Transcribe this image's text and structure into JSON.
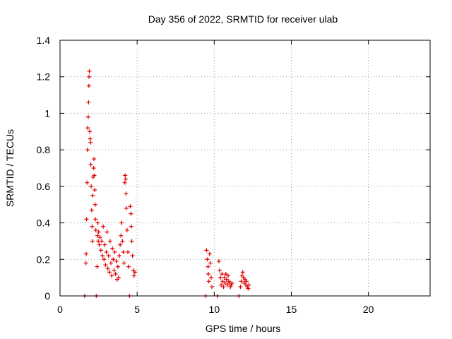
{
  "chart_data": {
    "type": "scatter",
    "title": "Day 356 of 2022, SRMTID for receiver ulab",
    "xlabel": "GPS time / hours",
    "ylabel": "SRMTID / TECUs",
    "xlim": [
      0,
      24
    ],
    "ylim": [
      0,
      1.4
    ],
    "xticks": [
      0,
      5,
      10,
      15,
      20
    ],
    "xtick_labels": [
      "0",
      "5",
      "10",
      "15",
      "20"
    ],
    "yticks": [
      0,
      0.2,
      0.4,
      0.6,
      0.8,
      1.0,
      1.2,
      1.4
    ],
    "ytick_labels": [
      "0",
      "0.2",
      "0.4",
      "0.6",
      "0.8",
      "1",
      "1.2",
      "1.4"
    ],
    "grid": true,
    "marker": "plus",
    "series": [
      {
        "name": "SRMTID",
        "color": "#e00000",
        "points": [
          [
            1.6,
            0.0
          ],
          [
            1.68,
            0.18
          ],
          [
            1.7,
            0.23
          ],
          [
            1.72,
            0.42
          ],
          [
            1.75,
            0.62
          ],
          [
            1.78,
            0.8
          ],
          [
            1.8,
            0.92
          ],
          [
            1.83,
            0.98
          ],
          [
            1.85,
            1.06
          ],
          [
            1.87,
            1.15
          ],
          [
            1.88,
            1.2
          ],
          [
            1.9,
            1.23
          ],
          [
            1.92,
            0.9
          ],
          [
            1.95,
            0.86
          ],
          [
            1.98,
            0.84
          ],
          [
            2.0,
            0.72
          ],
          [
            2.02,
            0.6
          ],
          [
            2.05,
            0.47
          ],
          [
            2.08,
            0.38
          ],
          [
            2.1,
            0.3
          ],
          [
            2.12,
            0.55
          ],
          [
            2.15,
            0.65
          ],
          [
            2.18,
            0.7
          ],
          [
            2.2,
            0.75
          ],
          [
            2.22,
            0.66
          ],
          [
            2.25,
            0.58
          ],
          [
            2.28,
            0.5
          ],
          [
            2.3,
            0.42
          ],
          [
            2.32,
            0.36
          ],
          [
            2.35,
            0.0
          ],
          [
            2.4,
            0.16
          ],
          [
            2.42,
            0.33
          ],
          [
            2.45,
            0.4
          ],
          [
            2.48,
            0.3
          ],
          [
            2.5,
            0.35
          ],
          [
            2.55,
            0.28
          ],
          [
            2.6,
            0.32
          ],
          [
            2.65,
            0.25
          ],
          [
            2.7,
            0.3
          ],
          [
            2.75,
            0.22
          ],
          [
            2.8,
            0.38
          ],
          [
            2.85,
            0.2
          ],
          [
            2.9,
            0.28
          ],
          [
            2.95,
            0.17
          ],
          [
            3.0,
            0.24
          ],
          [
            3.05,
            0.35
          ],
          [
            3.1,
            0.15
          ],
          [
            3.15,
            0.22
          ],
          [
            3.2,
            0.13
          ],
          [
            3.25,
            0.3
          ],
          [
            3.3,
            0.18
          ],
          [
            3.35,
            0.11
          ],
          [
            3.4,
            0.26
          ],
          [
            3.45,
            0.2
          ],
          [
            3.5,
            0.14
          ],
          [
            3.55,
            0.24
          ],
          [
            3.6,
            0.12
          ],
          [
            3.65,
            0.19
          ],
          [
            3.7,
            0.09
          ],
          [
            3.75,
            0.16
          ],
          [
            3.8,
            0.1
          ],
          [
            3.85,
            0.22
          ],
          [
            3.9,
            0.28
          ],
          [
            3.95,
            0.33
          ],
          [
            4.0,
            0.4
          ],
          [
            4.05,
            0.3
          ],
          [
            4.1,
            0.24
          ],
          [
            4.15,
            0.18
          ],
          [
            4.2,
            0.62
          ],
          [
            4.22,
            0.66
          ],
          [
            4.25,
            0.64
          ],
          [
            4.28,
            0.56
          ],
          [
            4.3,
            0.48
          ],
          [
            4.35,
            0.36
          ],
          [
            4.4,
            0.24
          ],
          [
            4.45,
            0.16
          ],
          [
            4.5,
            0.0
          ],
          [
            4.55,
            0.49
          ],
          [
            4.6,
            0.45
          ],
          [
            4.62,
            0.38
          ],
          [
            4.65,
            0.3
          ],
          [
            4.7,
            0.22
          ],
          [
            4.75,
            0.14
          ],
          [
            4.8,
            0.11
          ],
          [
            4.85,
            0.13
          ],
          [
            9.45,
            0.0
          ],
          [
            9.5,
            0.25
          ],
          [
            9.55,
            0.2
          ],
          [
            9.6,
            0.16
          ],
          [
            9.62,
            0.12
          ],
          [
            9.65,
            0.08
          ],
          [
            9.7,
            0.23
          ],
          [
            9.75,
            0.18
          ],
          [
            9.8,
            0.1
          ],
          [
            9.85,
            0.05
          ],
          [
            10.2,
            0.0
          ],
          [
            10.3,
            0.19
          ],
          [
            10.35,
            0.14
          ],
          [
            10.4,
            0.1
          ],
          [
            10.45,
            0.06
          ],
          [
            10.5,
            0.12
          ],
          [
            10.55,
            0.08
          ],
          [
            10.6,
            0.05
          ],
          [
            10.65,
            0.1
          ],
          [
            10.7,
            0.07
          ],
          [
            10.75,
            0.12
          ],
          [
            10.8,
            0.09
          ],
          [
            10.85,
            0.06
          ],
          [
            10.9,
            0.11
          ],
          [
            10.95,
            0.08
          ],
          [
            11.0,
            0.07
          ],
          [
            11.05,
            0.05
          ],
          [
            11.1,
            0.06
          ],
          [
            11.15,
            0.07
          ],
          [
            11.6,
            0.0
          ],
          [
            11.7,
            0.05
          ],
          [
            11.75,
            0.08
          ],
          [
            11.8,
            0.11
          ],
          [
            11.85,
            0.13
          ],
          [
            11.9,
            0.1
          ],
          [
            11.95,
            0.07
          ],
          [
            12.0,
            0.09
          ],
          [
            12.05,
            0.06
          ],
          [
            12.1,
            0.08
          ],
          [
            12.15,
            0.05
          ],
          [
            12.2,
            0.04
          ],
          [
            12.25,
            0.06
          ]
        ]
      }
    ]
  }
}
